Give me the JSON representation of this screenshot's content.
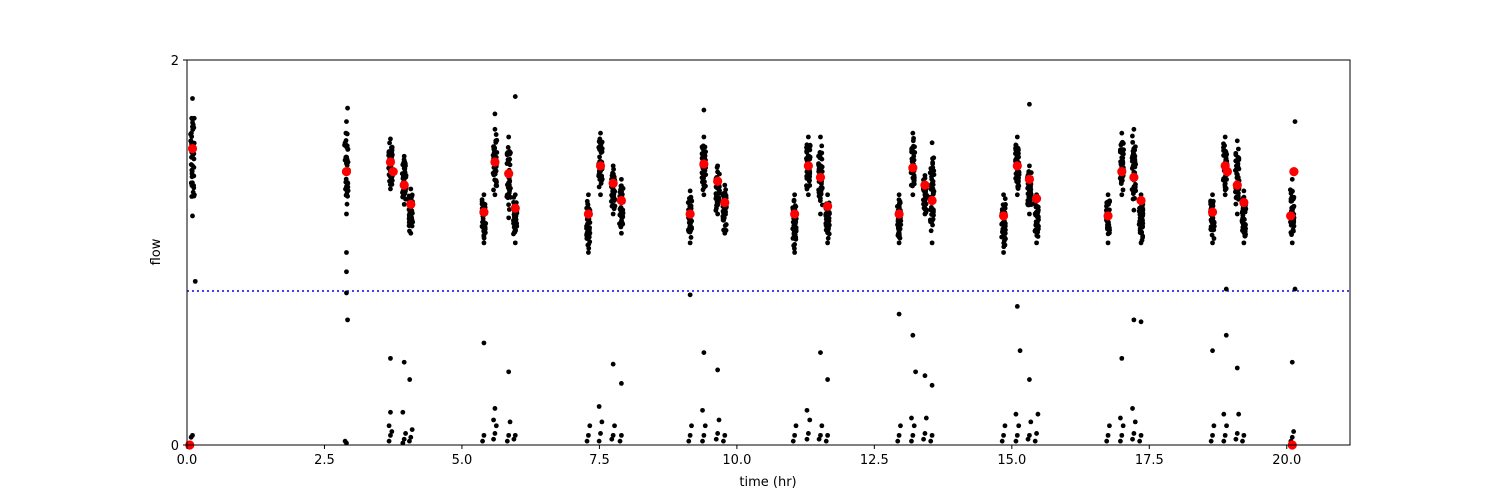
{
  "chart_data": {
    "type": "scatter",
    "title": "",
    "xlabel": "time (hr)",
    "ylabel": "flow",
    "xlim": [
      0,
      21.15
    ],
    "ylim": [
      0,
      2
    ],
    "xticks": [
      0.0,
      2.5,
      5.0,
      7.5,
      10.0,
      12.5,
      15.0,
      17.5,
      20.0
    ],
    "xtick_labels": [
      "0.0",
      "2.5",
      "5.0",
      "7.5",
      "10.0",
      "12.5",
      "15.0",
      "17.5",
      "20.0"
    ],
    "yticks": [
      0,
      2
    ],
    "ytick_labels": [
      "0",
      "2"
    ],
    "grid": false,
    "legend": "none",
    "colors": {
      "raw": "#000000",
      "mean": "#ff0000",
      "threshold": "#0000ff",
      "axes": "#000000"
    },
    "threshold_line": {
      "y": 0.8,
      "style": "dotted"
    },
    "raw_clusters": [
      {
        "x": 0.1,
        "ymin": 1.19,
        "ymax": 1.8,
        "low": [
          0.04,
          0.05
        ]
      },
      {
        "x": 2.9,
        "ymin": 1.2,
        "ymax": 1.68,
        "low": [
          0.02,
          0.01
        ]
      },
      {
        "x": 3.7,
        "ymin": 1.33,
        "ymax": 1.59,
        "low": [
          0.02,
          0.05,
          0.07,
          0.1,
          0.17
        ]
      },
      {
        "x": 3.95,
        "ymin": 1.25,
        "ymax": 1.5,
        "low": [
          0.01,
          0.03,
          0.06,
          0.17
        ]
      },
      {
        "x": 4.07,
        "ymin": 1.1,
        "ymax": 1.33,
        "low": [
          0.02,
          0.04,
          0.08
        ]
      },
      {
        "x": 5.4,
        "ymin": 1.05,
        "ymax": 1.3,
        "low": [
          0.02,
          0.05
        ]
      },
      {
        "x": 5.6,
        "ymin": 1.3,
        "ymax": 1.64,
        "low": [
          0.03,
          0.06,
          0.1,
          0.13,
          0.19
        ]
      },
      {
        "x": 5.85,
        "ymin": 1.18,
        "ymax": 1.6,
        "low": [
          0.02,
          0.05,
          0.12
        ]
      },
      {
        "x": 5.97,
        "ymin": 1.05,
        "ymax": 1.3,
        "low": [
          0.03,
          0.05
        ]
      },
      {
        "x": 7.3,
        "ymin": 1.0,
        "ymax": 1.3,
        "low": [
          0.02,
          0.05,
          0.1
        ]
      },
      {
        "x": 7.52,
        "ymin": 1.3,
        "ymax": 1.62,
        "low": [
          0.02,
          0.06,
          0.12,
          0.2
        ]
      },
      {
        "x": 7.75,
        "ymin": 1.2,
        "ymax": 1.45,
        "low": [
          0.03,
          0.05,
          0.1
        ]
      },
      {
        "x": 7.9,
        "ymin": 1.1,
        "ymax": 1.38,
        "low": [
          0.02,
          0.05
        ]
      },
      {
        "x": 9.15,
        "ymin": 1.05,
        "ymax": 1.32,
        "low": [
          0.02,
          0.05,
          0.1
        ]
      },
      {
        "x": 9.4,
        "ymin": 1.3,
        "ymax": 1.6,
        "low": [
          0.02,
          0.05,
          0.1,
          0.18
        ]
      },
      {
        "x": 9.65,
        "ymin": 1.2,
        "ymax": 1.45,
        "low": [
          0.03,
          0.06,
          0.13
        ]
      },
      {
        "x": 9.78,
        "ymin": 1.1,
        "ymax": 1.35,
        "low": [
          0.02,
          0.05
        ]
      },
      {
        "x": 11.05,
        "ymin": 1.0,
        "ymax": 1.3,
        "low": [
          0.02,
          0.05,
          0.1
        ]
      },
      {
        "x": 11.3,
        "ymin": 1.3,
        "ymax": 1.6,
        "low": [
          0.03,
          0.06,
          0.13,
          0.18
        ]
      },
      {
        "x": 11.52,
        "ymin": 1.2,
        "ymax": 1.6,
        "low": [
          0.03,
          0.05,
          0.1
        ]
      },
      {
        "x": 11.65,
        "ymin": 1.05,
        "ymax": 1.3,
        "low": [
          0.02,
          0.05
        ]
      },
      {
        "x": 12.95,
        "ymin": 1.05,
        "ymax": 1.3,
        "low": [
          0.02,
          0.05,
          0.1
        ]
      },
      {
        "x": 13.2,
        "ymin": 1.3,
        "ymax": 1.62,
        "low": [
          0.02,
          0.05,
          0.1,
          0.14
        ]
      },
      {
        "x": 13.42,
        "ymin": 1.2,
        "ymax": 1.4,
        "low": [
          0.03,
          0.06,
          0.14
        ]
      },
      {
        "x": 13.55,
        "ymin": 1.05,
        "ymax": 1.57,
        "low": [
          0.02,
          0.05
        ]
      },
      {
        "x": 14.85,
        "ymin": 1.0,
        "ymax": 1.3,
        "low": [
          0.02,
          0.05,
          0.1
        ]
      },
      {
        "x": 15.1,
        "ymin": 1.3,
        "ymax": 1.6,
        "low": [
          0.02,
          0.05,
          0.1,
          0.16
        ]
      },
      {
        "x": 15.32,
        "ymin": 1.2,
        "ymax": 1.45,
        "low": [
          0.03,
          0.05,
          0.12
        ]
      },
      {
        "x": 15.45,
        "ymin": 1.05,
        "ymax": 1.3,
        "low": [
          0.02,
          0.06,
          0.16
        ]
      },
      {
        "x": 16.75,
        "ymin": 1.05,
        "ymax": 1.3,
        "low": [
          0.02,
          0.05,
          0.1
        ]
      },
      {
        "x": 17.0,
        "ymin": 1.3,
        "ymax": 1.62,
        "low": [
          0.02,
          0.05,
          0.1,
          0.14
        ]
      },
      {
        "x": 17.22,
        "ymin": 1.22,
        "ymax": 1.64,
        "low": [
          0.03,
          0.06,
          0.12,
          0.19
        ]
      },
      {
        "x": 17.35,
        "ymin": 1.05,
        "ymax": 1.3,
        "low": [
          0.02,
          0.05
        ]
      },
      {
        "x": 18.65,
        "ymin": 1.05,
        "ymax": 1.3,
        "low": [
          0.02,
          0.05,
          0.1
        ]
      },
      {
        "x": 18.88,
        "ymin": 1.3,
        "ymax": 1.6,
        "low": [
          0.02,
          0.05,
          0.1,
          0.16
        ]
      },
      {
        "x": 19.1,
        "ymin": 1.2,
        "ymax": 1.58,
        "low": [
          0.03,
          0.06,
          0.16
        ]
      },
      {
        "x": 19.22,
        "ymin": 1.05,
        "ymax": 1.32,
        "low": [
          0.02,
          0.05
        ]
      },
      {
        "x": 20.1,
        "ymin": 1.05,
        "ymax": 1.38,
        "low": [
          0.02,
          0.04,
          0.07,
          0.01
        ]
      }
    ],
    "raw_outliers": [
      {
        "x": 0.15,
        "y": 0.85
      },
      {
        "x": 2.92,
        "y": 1.75
      },
      {
        "x": 2.9,
        "y": 1.0
      },
      {
        "x": 2.9,
        "y": 0.9
      },
      {
        "x": 2.9,
        "y": 0.79
      },
      {
        "x": 2.92,
        "y": 0.65
      },
      {
        "x": 3.7,
        "y": 0.45
      },
      {
        "x": 3.95,
        "y": 0.43
      },
      {
        "x": 4.05,
        "y": 0.34
      },
      {
        "x": 5.4,
        "y": 0.53
      },
      {
        "x": 5.6,
        "y": 1.72
      },
      {
        "x": 5.85,
        "y": 0.38
      },
      {
        "x": 5.97,
        "y": 1.81
      },
      {
        "x": 7.75,
        "y": 0.42
      },
      {
        "x": 7.9,
        "y": 0.32
      },
      {
        "x": 9.15,
        "y": 0.78
      },
      {
        "x": 9.4,
        "y": 0.48
      },
      {
        "x": 9.4,
        "y": 1.74
      },
      {
        "x": 9.65,
        "y": 0.39
      },
      {
        "x": 11.52,
        "y": 0.48
      },
      {
        "x": 11.65,
        "y": 0.34
      },
      {
        "x": 12.95,
        "y": 0.68
      },
      {
        "x": 13.2,
        "y": 0.57
      },
      {
        "x": 13.25,
        "y": 0.38
      },
      {
        "x": 13.42,
        "y": 0.36
      },
      {
        "x": 13.55,
        "y": 0.31
      },
      {
        "x": 15.1,
        "y": 0.72
      },
      {
        "x": 15.15,
        "y": 0.49
      },
      {
        "x": 15.32,
        "y": 0.34
      },
      {
        "x": 15.32,
        "y": 1.77
      },
      {
        "x": 17.0,
        "y": 0.45
      },
      {
        "x": 17.22,
        "y": 0.65
      },
      {
        "x": 17.35,
        "y": 0.64
      },
      {
        "x": 18.65,
        "y": 0.49
      },
      {
        "x": 18.9,
        "y": 0.81
      },
      {
        "x": 18.9,
        "y": 0.57
      },
      {
        "x": 19.1,
        "y": 0.4
      },
      {
        "x": 20.1,
        "y": 0.43
      },
      {
        "x": 20.15,
        "y": 0.81
      },
      {
        "x": 20.15,
        "y": 1.68
      }
    ],
    "mean_points": {
      "x": [
        0.1,
        2.9,
        3.7,
        3.75,
        3.95,
        4.07,
        5.4,
        5.6,
        5.85,
        5.97,
        7.3,
        7.52,
        7.75,
        7.9,
        9.15,
        9.4,
        9.65,
        9.78,
        11.05,
        11.3,
        11.52,
        11.65,
        12.95,
        13.2,
        13.42,
        13.55,
        14.85,
        15.1,
        15.32,
        15.45,
        16.75,
        17.0,
        17.22,
        17.35,
        18.65,
        18.88,
        18.92,
        19.1,
        19.22,
        20.07,
        20.13,
        0.05,
        20.1
      ],
      "y": [
        1.54,
        1.42,
        1.47,
        1.42,
        1.35,
        1.25,
        1.21,
        1.47,
        1.41,
        1.23,
        1.2,
        1.45,
        1.36,
        1.27,
        1.2,
        1.46,
        1.37,
        1.26,
        1.2,
        1.45,
        1.39,
        1.24,
        1.2,
        1.44,
        1.35,
        1.27,
        1.19,
        1.45,
        1.38,
        1.28,
        1.19,
        1.42,
        1.39,
        1.27,
        1.21,
        1.45,
        1.42,
        1.35,
        1.26,
        1.19,
        1.42,
        0.0,
        0.0
      ]
    }
  }
}
